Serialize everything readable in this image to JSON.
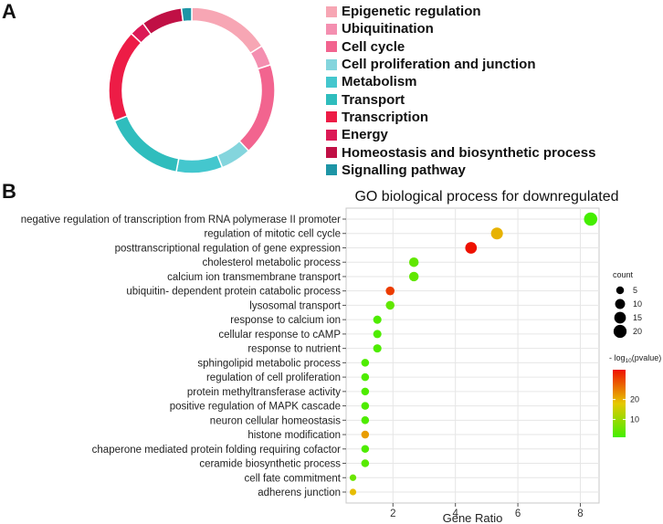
{
  "panels": {
    "a_label": "A",
    "b_label": "B"
  },
  "chart_data": [
    {
      "type": "pie",
      "style": "donut",
      "categories": [
        "Epigenetic regulation",
        "Ubiquitination",
        "Cell cycle",
        "Cell proliferation and junction",
        "Metabolism",
        "Transport",
        "Transcription",
        "Energy",
        "Homeostasis and biosynthetic process",
        "Signalling pathway"
      ],
      "values": [
        16,
        4,
        18,
        6,
        9,
        16,
        18,
        3,
        8,
        2
      ],
      "colors": [
        "#f7a6b4",
        "#f48fb0",
        "#f2648f",
        "#84d5dd",
        "#44c7ce",
        "#2fbdbd",
        "#ed1c46",
        "#dc1a56",
        "#c01045",
        "#1e95a6"
      ],
      "legend_position": "right"
    },
    {
      "type": "scatter",
      "title": "GO biological process for downregulated",
      "xlabel": "Gene Ratio",
      "xlim": [
        0.5,
        8.6
      ],
      "xticks": [
        2,
        4,
        6,
        8
      ],
      "categories": [
        "negative regulation of transcription from RNA polymerase II promoter",
        "regulation of mitotic cell cycle",
        "posttranscriptional regulation of gene expression",
        "cholesterol metabolic process",
        "calcium ion transmembrane transport",
        "ubiquitin- dependent protein catabolic process",
        "lysosomal transport",
        "response to calcium ion",
        "cellular response to cAMP",
        "response to nutrient",
        "sphingolipid metabolic process",
        "regulation of cell proliferation",
        "protein methyltransferase activity",
        "positive regulation of MAPK cascade",
        "neuron cellular homeostasis",
        "histone modification",
        "chaperone mediated protein folding requiring cofactor",
        "ceramide biosynthetic process",
        "cell fate commitment",
        "adherens junction"
      ],
      "x": [
        8.33,
        5.33,
        4.5,
        2.67,
        2.67,
        1.91,
        1.91,
        1.5,
        1.5,
        1.5,
        1.11,
        1.11,
        1.11,
        1.11,
        1.11,
        1.11,
        1.11,
        1.11,
        0.72,
        0.72
      ],
      "count": [
        21,
        16,
        15,
        9,
        9,
        7,
        7,
        6,
        6,
        6,
        5,
        5,
        5,
        5,
        5,
        5,
        5,
        5,
        3,
        3
      ],
      "neglog10_pvalue": [
        1,
        20,
        35,
        4,
        4,
        31,
        4,
        2,
        2,
        2,
        2,
        2,
        2,
        2,
        2,
        22,
        2,
        3,
        5,
        19
      ],
      "size_legend": {
        "title": "count",
        "values": [
          5,
          10,
          15,
          20
        ],
        "labels": [
          "5",
          "10",
          "15",
          "20"
        ]
      },
      "color_legend": {
        "title_prefix": "- log",
        "title_sub": "10",
        "title_suffix": "(pvalue)",
        "range": [
          1,
          35
        ],
        "ticks": [
          10,
          20
        ],
        "tick_labels": [
          "10",
          "20"
        ],
        "low_color": "#44ee00",
        "high_color": "#ee1100"
      },
      "grid": true
    }
  ]
}
